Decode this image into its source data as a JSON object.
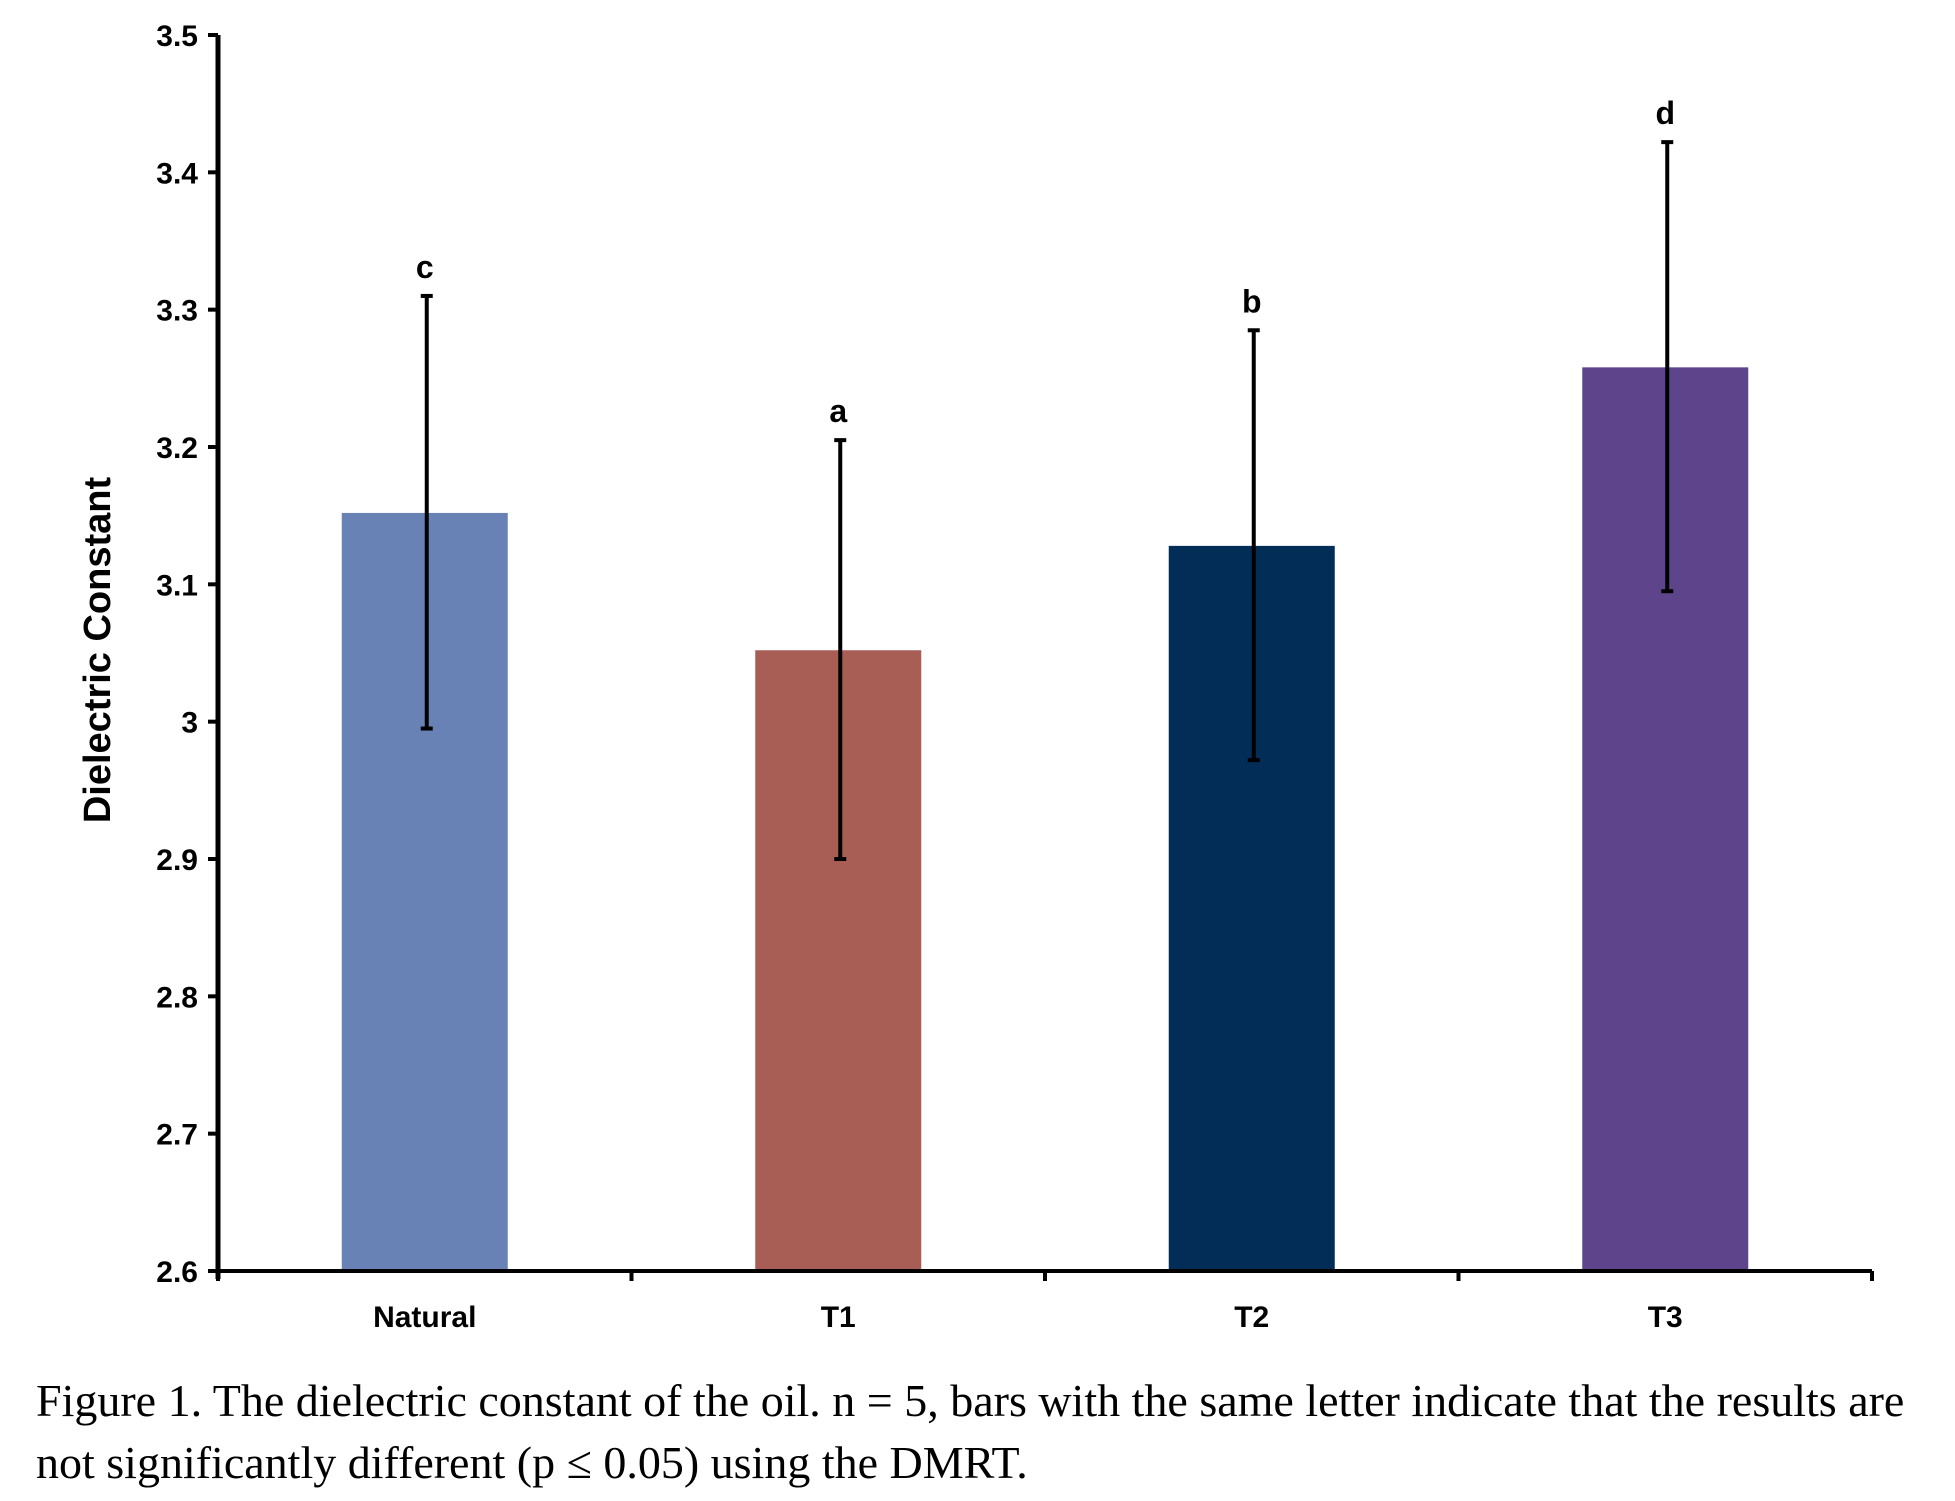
{
  "chart_data": {
    "type": "bar",
    "title": "",
    "xlabel": "",
    "ylabel": "Dielectric Constant",
    "ylim": [
      2.6,
      3.5
    ],
    "yticks": [
      "2.6",
      "2.7",
      "2.8",
      "2.9",
      "3",
      "3.1",
      "3.2",
      "3.3",
      "3.4",
      "3.5"
    ],
    "categories": [
      "Natural",
      "T1",
      "T2",
      "T3"
    ],
    "values": [
      3.152,
      3.052,
      3.128,
      3.258
    ],
    "error_low": [
      2.995,
      2.9,
      2.972,
      3.095
    ],
    "error_high": [
      3.31,
      3.205,
      3.285,
      3.422
    ],
    "letters": [
      "c",
      "a",
      "b",
      "d"
    ],
    "colors": [
      "#6882b6",
      "#a85e55",
      "#022d57",
      "#5e448a"
    ],
    "grid": false,
    "legend": "none"
  },
  "caption": "Figure 1. The dielectric constant of the oil. n = 5, bars with the same letter indicate that the results are not significantly different (p ≤ 0.05) using the DMRT."
}
